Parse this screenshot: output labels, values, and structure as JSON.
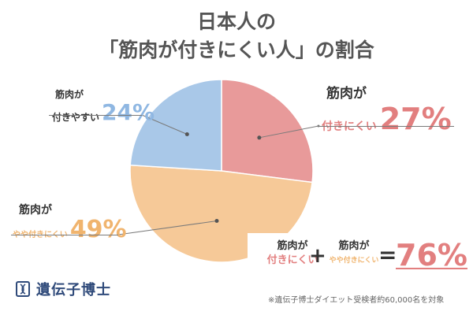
{
  "title": {
    "line1": "日本人の",
    "line2": "「筋肉が付きにくい人」の割合"
  },
  "chart_data": {
    "type": "pie",
    "title": "日本人の「筋肉が付きにくい人」の割合",
    "slices": [
      {
        "label_top": "筋肉が",
        "label_bottom": "付きにくい",
        "value": 27,
        "value_text": "27%",
        "color": "#e89a9a",
        "text_color": "#e27f7f"
      },
      {
        "label_top": "筋肉が",
        "label_bottom": "やや付きにくい",
        "value": 49,
        "value_text": "49%",
        "color": "#f6c998",
        "text_color": "#f0b46e"
      },
      {
        "label_top": "筋肉が",
        "label_bottom": "付きやすい",
        "value": 24,
        "value_text": "24%",
        "color": "#a9c8e8",
        "text_color": "#8fb7e2"
      }
    ]
  },
  "summary": {
    "item1_top": "筋肉が",
    "item1_bottom": "付きにくい",
    "plus": "+",
    "item2_top": "筋肉が",
    "item2_bottom": "やや付きにくい",
    "equals": "=",
    "total": "76%"
  },
  "logo": {
    "text": "遺伝子博士",
    "icon": "dna-book-icon"
  },
  "footnote": "※遺伝子博士ダイエット受検者約60,000名を対象",
  "colors": {
    "red": "#e27f7f",
    "orange": "#f0b46e",
    "blue": "#8fb7e2",
    "dark": "#333333",
    "navy": "#2f4a7a"
  }
}
